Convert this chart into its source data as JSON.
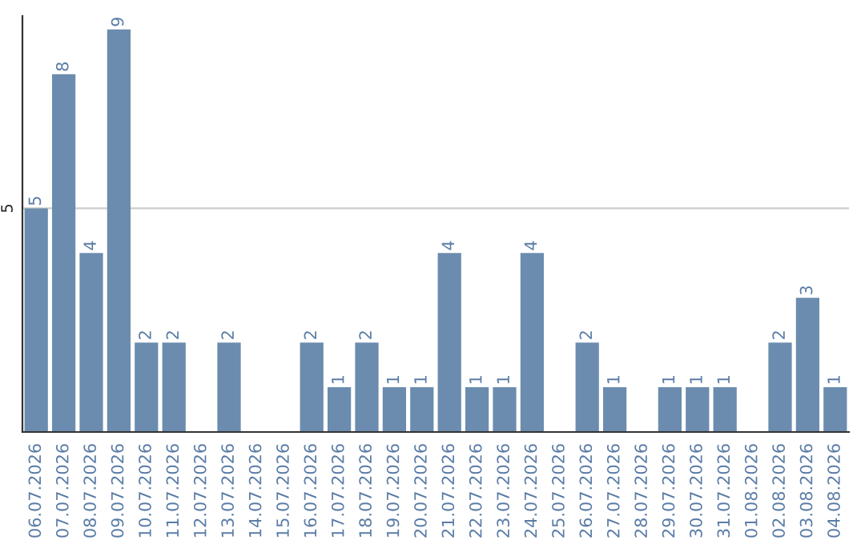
{
  "chart_data": {
    "type": "bar",
    "categories": [
      "06.07.2026",
      "07.07.2026",
      "08.07.2026",
      "09.07.2026",
      "10.07.2026",
      "11.07.2026",
      "12.07.2026",
      "13.07.2026",
      "14.07.2026",
      "15.07.2026",
      "16.07.2026",
      "17.07.2026",
      "18.07.2026",
      "19.07.2026",
      "20.07.2026",
      "21.07.2026",
      "22.07.2026",
      "23.07.2026",
      "24.07.2026",
      "25.07.2026",
      "26.07.2026",
      "27.07.2026",
      "28.07.2026",
      "29.07.2026",
      "30.07.2026",
      "31.07.2026",
      "01.08.2026",
      "02.08.2026",
      "03.08.2026",
      "04.08.2026"
    ],
    "values": [
      5,
      8,
      4,
      9,
      2,
      2,
      null,
      2,
      null,
      null,
      2,
      1,
      2,
      1,
      1,
      4,
      1,
      1,
      4,
      null,
      2,
      1,
      null,
      1,
      1,
      1,
      null,
      2,
      3,
      1
    ],
    "color": "#6b8cae",
    "ylim": [
      0,
      9.3
    ],
    "yticks": [
      5
    ],
    "grid": "y",
    "data_labels": true
  }
}
